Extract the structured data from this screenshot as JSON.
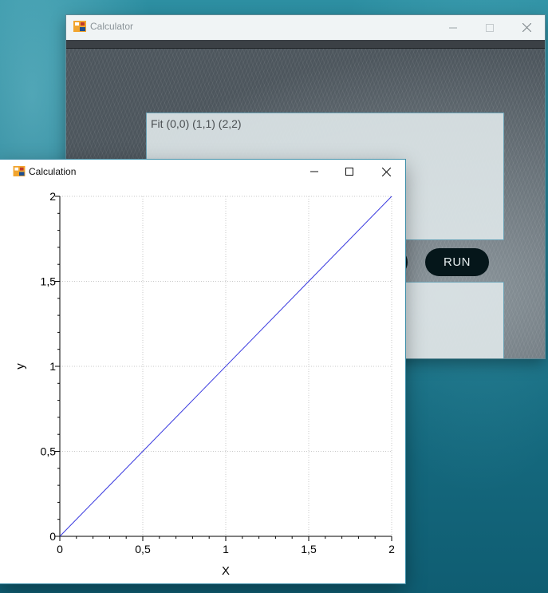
{
  "calculator": {
    "title": "Calculator",
    "input_text": "Fit (0,0) (1,1) (2,2)",
    "run_label": "RUN",
    "output_text": ""
  },
  "calculation": {
    "title": "Calculation"
  },
  "icons": {
    "app": "app-icon",
    "minimize": "minimize-icon",
    "maximize": "maximize-icon",
    "close": "close-icon"
  },
  "colors": {
    "line": "#3a3adf",
    "grid": "#c8c8c8",
    "run_bg": "#05161a"
  },
  "chart_data": {
    "type": "line",
    "title": "",
    "xlabel": "X",
    "ylabel": "y",
    "xlim": [
      0,
      2
    ],
    "ylim": [
      0,
      2
    ],
    "xticks": [
      0,
      0.5,
      1,
      1.5,
      2
    ],
    "yticks": [
      0,
      0.5,
      1,
      1.5,
      2
    ],
    "xtick_labels": [
      "0",
      "0,5",
      "1",
      "1,5",
      "2"
    ],
    "ytick_labels": [
      "0",
      "0,5",
      "1",
      "1,5",
      "2"
    ],
    "grid": true,
    "series": [
      {
        "x": [
          0,
          2
        ],
        "y": [
          0,
          2
        ]
      }
    ]
  }
}
